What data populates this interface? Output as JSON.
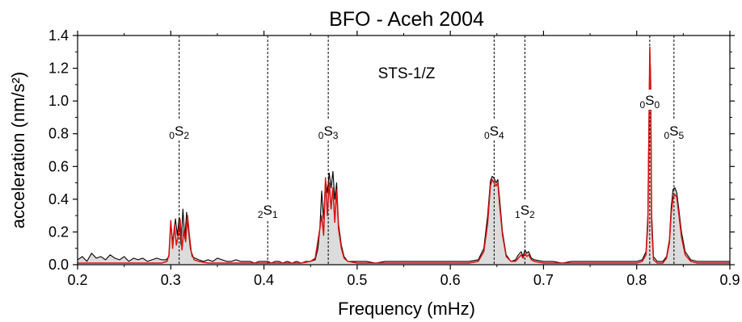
{
  "chart_data": {
    "type": "line",
    "title": "BFO - Aceh 2004",
    "xlabel": "Frequency (mHz)",
    "ylabel": "acceleration (nm/s²)",
    "xlim": [
      0.2,
      0.9
    ],
    "ylim": [
      0.0,
      1.4
    ],
    "xticks": [
      "0.2",
      "0.3",
      "0.4",
      "0.5",
      "0.6",
      "0.7",
      "0.8",
      "0.9"
    ],
    "yticks": [
      "0.0",
      "0.2",
      "0.4",
      "0.6",
      "0.8",
      "1.0",
      "1.2",
      "1.4"
    ],
    "grid": false,
    "annotation": "STS-1/Z",
    "colors": {
      "black_series": "#000000",
      "red_series": "#dd1111",
      "fill": "#dcdcdc"
    },
    "modes": [
      {
        "pre": "0",
        "letter": "S",
        "sub": "2",
        "x": 0.309
      },
      {
        "pre": "2",
        "letter": "S",
        "sub": "1",
        "x": 0.404
      },
      {
        "pre": "0",
        "letter": "S",
        "sub": "3",
        "x": 0.469
      },
      {
        "pre": "0",
        "letter": "S",
        "sub": "4",
        "x": 0.647
      },
      {
        "pre": "1",
        "letter": "S",
        "sub": "2",
        "x": 0.68
      },
      {
        "pre": "0",
        "letter": "S",
        "sub": "0",
        "x": 0.814
      },
      {
        "pre": "0",
        "letter": "S",
        "sub": "5",
        "x": 0.84
      }
    ],
    "series": [
      {
        "color": "#000000",
        "x": [
          0.2,
          0.205,
          0.21,
          0.215,
          0.22,
          0.225,
          0.23,
          0.235,
          0.24,
          0.245,
          0.25,
          0.255,
          0.26,
          0.265,
          0.27,
          0.275,
          0.28,
          0.285,
          0.29,
          0.295,
          0.298,
          0.3,
          0.302,
          0.305,
          0.307,
          0.309,
          0.311,
          0.313,
          0.315,
          0.317,
          0.319,
          0.321,
          0.323,
          0.326,
          0.33,
          0.335,
          0.34,
          0.345,
          0.35,
          0.355,
          0.36,
          0.365,
          0.37,
          0.375,
          0.38,
          0.385,
          0.39,
          0.395,
          0.4,
          0.404,
          0.408,
          0.412,
          0.416,
          0.42,
          0.425,
          0.43,
          0.435,
          0.44,
          0.445,
          0.45,
          0.455,
          0.458,
          0.46,
          0.462,
          0.464,
          0.466,
          0.468,
          0.47,
          0.472,
          0.474,
          0.476,
          0.478,
          0.48,
          0.483,
          0.486,
          0.49,
          0.495,
          0.5,
          0.505,
          0.51,
          0.52,
          0.53,
          0.54,
          0.55,
          0.56,
          0.57,
          0.58,
          0.59,
          0.6,
          0.61,
          0.62,
          0.63,
          0.636,
          0.64,
          0.643,
          0.645,
          0.647,
          0.649,
          0.651,
          0.653,
          0.656,
          0.66,
          0.665,
          0.67,
          0.673,
          0.676,
          0.678,
          0.68,
          0.682,
          0.684,
          0.687,
          0.69,
          0.7,
          0.71,
          0.72,
          0.73,
          0.74,
          0.75,
          0.76,
          0.77,
          0.78,
          0.79,
          0.8,
          0.806,
          0.81,
          0.812,
          0.813,
          0.814,
          0.815,
          0.816,
          0.818,
          0.822,
          0.828,
          0.832,
          0.835,
          0.837,
          0.839,
          0.841,
          0.843,
          0.845,
          0.848,
          0.852,
          0.858,
          0.865,
          0.87,
          0.88,
          0.89,
          0.9
        ],
        "y": [
          0.03,
          0.05,
          0.02,
          0.07,
          0.04,
          0.05,
          0.03,
          0.06,
          0.04,
          0.03,
          0.05,
          0.02,
          0.04,
          0.03,
          0.04,
          0.02,
          0.03,
          0.04,
          0.03,
          0.03,
          0.05,
          0.26,
          0.14,
          0.28,
          0.18,
          0.29,
          0.12,
          0.34,
          0.16,
          0.32,
          0.21,
          0.1,
          0.05,
          0.04,
          0.03,
          0.02,
          0.03,
          0.02,
          0.04,
          0.03,
          0.02,
          0.02,
          0.03,
          0.02,
          0.02,
          0.02,
          0.01,
          0.02,
          0.02,
          0.02,
          0.01,
          0.02,
          0.02,
          0.01,
          0.02,
          0.01,
          0.02,
          0.01,
          0.02,
          0.02,
          0.03,
          0.1,
          0.22,
          0.45,
          0.28,
          0.52,
          0.44,
          0.56,
          0.47,
          0.57,
          0.4,
          0.5,
          0.25,
          0.12,
          0.05,
          0.02,
          0.02,
          0.02,
          0.02,
          0.02,
          0.01,
          0.02,
          0.02,
          0.02,
          0.02,
          0.02,
          0.02,
          0.02,
          0.02,
          0.02,
          0.02,
          0.03,
          0.1,
          0.3,
          0.51,
          0.54,
          0.53,
          0.5,
          0.52,
          0.4,
          0.2,
          0.06,
          0.02,
          0.03,
          0.06,
          0.08,
          0.05,
          0.09,
          0.07,
          0.08,
          0.04,
          0.03,
          0.02,
          0.02,
          0.01,
          0.02,
          0.02,
          0.02,
          0.02,
          0.02,
          0.02,
          0.02,
          0.02,
          0.03,
          0.08,
          0.3,
          0.8,
          1.31,
          1.15,
          0.32,
          0.05,
          0.02,
          0.02,
          0.05,
          0.15,
          0.35,
          0.46,
          0.47,
          0.44,
          0.35,
          0.2,
          0.08,
          0.03,
          0.02,
          0.02,
          0.02,
          0.02,
          0.02
        ]
      },
      {
        "color": "#dd1111",
        "x": [
          0.2,
          0.21,
          0.22,
          0.23,
          0.24,
          0.25,
          0.26,
          0.27,
          0.28,
          0.29,
          0.296,
          0.298,
          0.3,
          0.302,
          0.304,
          0.306,
          0.308,
          0.31,
          0.312,
          0.314,
          0.316,
          0.318,
          0.32,
          0.322,
          0.325,
          0.33,
          0.34,
          0.35,
          0.36,
          0.37,
          0.38,
          0.39,
          0.4,
          0.41,
          0.42,
          0.43,
          0.44,
          0.45,
          0.455,
          0.458,
          0.46,
          0.462,
          0.464,
          0.466,
          0.468,
          0.47,
          0.472,
          0.474,
          0.476,
          0.478,
          0.48,
          0.483,
          0.486,
          0.49,
          0.5,
          0.52,
          0.54,
          0.56,
          0.58,
          0.6,
          0.62,
          0.63,
          0.636,
          0.64,
          0.643,
          0.645,
          0.647,
          0.649,
          0.651,
          0.653,
          0.656,
          0.66,
          0.665,
          0.67,
          0.673,
          0.676,
          0.678,
          0.68,
          0.682,
          0.684,
          0.687,
          0.69,
          0.7,
          0.72,
          0.74,
          0.76,
          0.78,
          0.8,
          0.806,
          0.81,
          0.812,
          0.813,
          0.814,
          0.815,
          0.816,
          0.818,
          0.822,
          0.828,
          0.832,
          0.835,
          0.837,
          0.839,
          0.841,
          0.843,
          0.845,
          0.848,
          0.852,
          0.858,
          0.865,
          0.87,
          0.88,
          0.89,
          0.9
        ],
        "y": [
          0.01,
          0.01,
          0.01,
          0.01,
          0.01,
          0.01,
          0.01,
          0.01,
          0.01,
          0.01,
          0.02,
          0.06,
          0.27,
          0.1,
          0.24,
          0.12,
          0.18,
          0.28,
          0.09,
          0.21,
          0.14,
          0.3,
          0.18,
          0.08,
          0.03,
          0.02,
          0.01,
          0.01,
          0.01,
          0.01,
          0.01,
          0.01,
          0.01,
          0.01,
          0.01,
          0.01,
          0.01,
          0.02,
          0.04,
          0.15,
          0.22,
          0.3,
          0.18,
          0.53,
          0.3,
          0.5,
          0.34,
          0.47,
          0.26,
          0.46,
          0.22,
          0.1,
          0.04,
          0.02,
          0.01,
          0.01,
          0.01,
          0.01,
          0.01,
          0.01,
          0.01,
          0.02,
          0.08,
          0.25,
          0.48,
          0.52,
          0.5,
          0.48,
          0.5,
          0.36,
          0.18,
          0.05,
          0.02,
          0.02,
          0.04,
          0.06,
          0.04,
          0.07,
          0.05,
          0.06,
          0.03,
          0.02,
          0.01,
          0.01,
          0.01,
          0.01,
          0.01,
          0.01,
          0.02,
          0.06,
          0.25,
          0.75,
          1.33,
          1.1,
          0.25,
          0.03,
          0.01,
          0.01,
          0.04,
          0.13,
          0.31,
          0.41,
          0.43,
          0.41,
          0.32,
          0.17,
          0.06,
          0.02,
          0.01,
          0.01,
          0.01,
          0.01,
          0.01
        ]
      }
    ]
  }
}
